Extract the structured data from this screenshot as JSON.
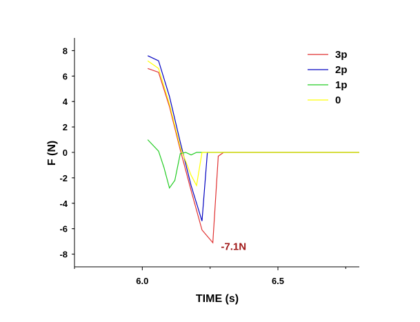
{
  "chart_data": {
    "type": "line",
    "title": "",
    "xlabel": "TIME (s)",
    "ylabel": "F (N)",
    "xlim": [
      5.75,
      6.8
    ],
    "ylim": [
      -9,
      9
    ],
    "xticks": [
      6.0,
      6.5
    ],
    "xtick_labels": [
      "6.0",
      "6.5"
    ],
    "yticks": [
      -8,
      -6,
      -4,
      -2,
      0,
      2,
      4,
      6,
      8
    ],
    "ytick_labels": [
      "-8",
      "-6",
      "-4",
      "-2",
      "0",
      "2",
      "4",
      "6",
      "8"
    ],
    "grid": false,
    "legend_position": "top-right",
    "series": [
      {
        "name": "3p",
        "color": "#e03030",
        "points": [
          [
            6.02,
            6.6
          ],
          [
            6.06,
            6.3
          ],
          [
            6.1,
            3.6
          ],
          [
            6.14,
            0.2
          ],
          [
            6.18,
            -3.0
          ],
          [
            6.22,
            -6.1
          ],
          [
            6.26,
            -7.1
          ],
          [
            6.28,
            -0.3
          ],
          [
            6.3,
            0
          ],
          [
            6.8,
            0
          ]
        ]
      },
      {
        "name": "2p",
        "color": "#0000c0",
        "points": [
          [
            6.02,
            7.6
          ],
          [
            6.06,
            7.2
          ],
          [
            6.1,
            4.4
          ],
          [
            6.14,
            0.8
          ],
          [
            6.18,
            -2.6
          ],
          [
            6.22,
            -5.4
          ],
          [
            6.24,
            0
          ],
          [
            6.8,
            0
          ]
        ]
      },
      {
        "name": "1p",
        "color": "#22cc22",
        "points": [
          [
            6.02,
            1.0
          ],
          [
            6.06,
            0.1
          ],
          [
            6.08,
            -1.2
          ],
          [
            6.1,
            -2.8
          ],
          [
            6.12,
            -2.2
          ],
          [
            6.14,
            -0.1
          ],
          [
            6.16,
            0
          ],
          [
            6.18,
            -0.2
          ],
          [
            6.2,
            0
          ],
          [
            6.8,
            0
          ]
        ]
      },
      {
        "name": "0",
        "color": "#ffff00",
        "points": [
          [
            6.02,
            7.2
          ],
          [
            6.06,
            6.6
          ],
          [
            6.1,
            3.8
          ],
          [
            6.14,
            0.4
          ],
          [
            6.18,
            -1.8
          ],
          [
            6.2,
            -2.6
          ],
          [
            6.22,
            0
          ],
          [
            6.8,
            0
          ]
        ]
      }
    ],
    "annotations": [
      {
        "text": "-7.1N",
        "x": 6.29,
        "y": -7.4,
        "color": "#a01818"
      }
    ]
  }
}
